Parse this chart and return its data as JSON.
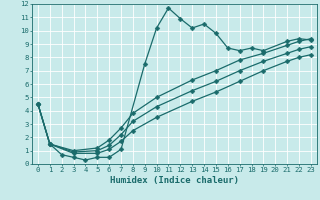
{
  "xlabel": "Humidex (Indice chaleur)",
  "bg_color": "#c8eaea",
  "line_color": "#1a6b6b",
  "grid_color": "#ffffff",
  "xlim": [
    -0.5,
    23.5
  ],
  "ylim": [
    0,
    12
  ],
  "xticks": [
    0,
    1,
    2,
    3,
    4,
    5,
    6,
    7,
    8,
    9,
    10,
    11,
    12,
    13,
    14,
    15,
    16,
    17,
    18,
    19,
    20,
    21,
    22,
    23
  ],
  "yticks": [
    0,
    1,
    2,
    3,
    4,
    5,
    6,
    7,
    8,
    9,
    10,
    11,
    12
  ],
  "lines": [
    {
      "x": [
        0,
        1,
        2,
        3,
        4,
        5,
        6,
        7,
        9,
        10,
        11,
        12,
        13,
        14,
        15,
        16,
        17,
        18,
        19,
        21,
        22,
        23
      ],
      "y": [
        4.5,
        1.5,
        0.7,
        0.5,
        0.3,
        0.5,
        0.5,
        1.1,
        7.5,
        10.2,
        11.7,
        10.9,
        10.2,
        10.5,
        9.8,
        8.7,
        8.5,
        8.7,
        8.5,
        9.2,
        9.4,
        9.3
      ]
    },
    {
      "x": [
        0,
        1,
        3,
        5,
        6,
        7,
        8,
        10,
        13,
        15,
        17,
        19,
        21,
        22,
        23
      ],
      "y": [
        4.5,
        1.5,
        1.0,
        1.2,
        1.8,
        2.7,
        3.8,
        5.0,
        6.3,
        7.0,
        7.8,
        8.3,
        8.9,
        9.2,
        9.4
      ]
    },
    {
      "x": [
        0,
        1,
        3,
        5,
        6,
        7,
        8,
        10,
        13,
        15,
        17,
        19,
        21,
        22,
        23
      ],
      "y": [
        4.5,
        1.5,
        0.9,
        1.0,
        1.4,
        2.2,
        3.2,
        4.3,
        5.5,
        6.2,
        7.0,
        7.7,
        8.3,
        8.6,
        8.8
      ]
    },
    {
      "x": [
        0,
        1,
        3,
        5,
        6,
        7,
        8,
        10,
        13,
        15,
        17,
        19,
        21,
        22,
        23
      ],
      "y": [
        4.5,
        1.5,
        0.8,
        0.8,
        1.1,
        1.7,
        2.5,
        3.5,
        4.7,
        5.4,
        6.2,
        7.0,
        7.7,
        8.0,
        8.2
      ]
    }
  ],
  "marker": "D",
  "markersize": 2.5,
  "linewidth": 0.9,
  "tick_fontsize": 5.2,
  "xlabel_fontsize": 6.5
}
